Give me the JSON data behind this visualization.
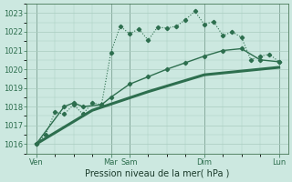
{
  "xlabel": "Pression niveau de la mer( hPa )",
  "bg_color": "#cce8e0",
  "grid_color": "#aaccc0",
  "line_color": "#2d6e4e",
  "ylim": [
    1015.5,
    1023.5
  ],
  "yticks": [
    1016,
    1017,
    1018,
    1019,
    1020,
    1021,
    1022,
    1023
  ],
  "xtick_labels": [
    "Ven",
    "Mar",
    "Sam",
    "Dim",
    "Lun"
  ],
  "xtick_positions": [
    0,
    8,
    10,
    18,
    26
  ],
  "vline_positions": [
    0,
    8,
    10,
    18,
    26
  ],
  "xlim": [
    -1,
    27
  ],
  "line1_x": [
    0,
    1,
    2,
    3,
    4,
    5,
    6,
    7,
    8,
    9,
    10,
    11,
    12,
    13,
    14,
    15,
    16,
    17,
    18,
    19,
    20,
    21,
    22,
    23,
    24,
    25,
    26
  ],
  "line1_y": [
    1016.0,
    1016.5,
    1017.7,
    1017.6,
    1018.1,
    1017.6,
    1018.2,
    1018.1,
    1020.9,
    1022.3,
    1021.9,
    1022.15,
    1021.55,
    1022.25,
    1022.2,
    1022.3,
    1022.65,
    1023.1,
    1022.4,
    1022.55,
    1021.8,
    1022.0,
    1021.7,
    1020.5,
    1020.7,
    1020.8,
    1020.4
  ],
  "line2_x": [
    0,
    3,
    4,
    5,
    7,
    8,
    10,
    12,
    14,
    16,
    18,
    20,
    22,
    24,
    26
  ],
  "line2_y": [
    1016.0,
    1018.0,
    1018.2,
    1018.0,
    1018.1,
    1018.5,
    1019.2,
    1019.6,
    1020.0,
    1020.35,
    1020.7,
    1021.0,
    1021.1,
    1020.5,
    1020.4
  ],
  "line3_x": [
    0,
    6,
    12,
    18,
    24,
    26
  ],
  "line3_y": [
    1016.0,
    1017.8,
    1018.8,
    1019.7,
    1020.0,
    1020.1
  ]
}
